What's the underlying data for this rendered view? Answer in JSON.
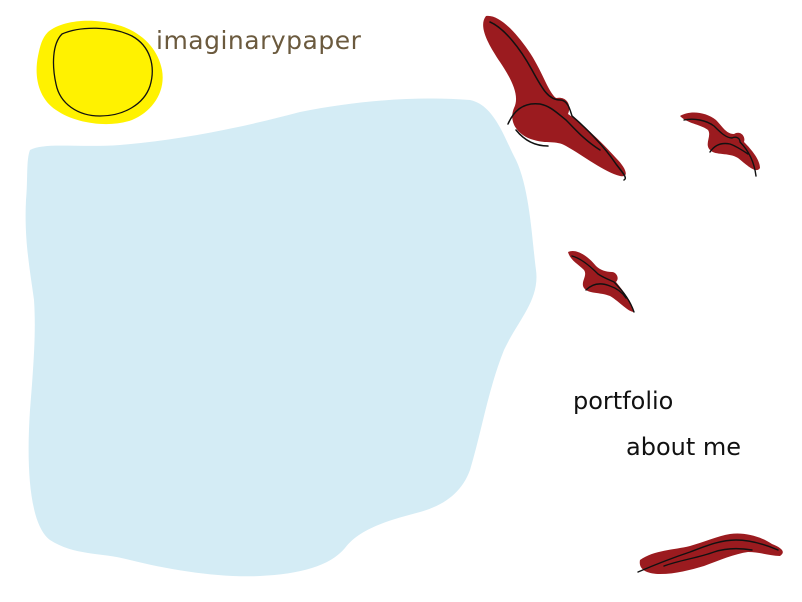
{
  "site": {
    "title": "imaginarypaper"
  },
  "nav": {
    "items": [
      {
        "label": "portfolio"
      },
      {
        "label": "about me"
      }
    ]
  },
  "colors": {
    "title": "#6b5a3e",
    "sun_fill": "#fff200",
    "panel_fill": "#d4ecf5",
    "bird_fill": "#9b1b1f",
    "outline": "#111111"
  },
  "icons": [
    "sun-icon",
    "bird-icon"
  ]
}
